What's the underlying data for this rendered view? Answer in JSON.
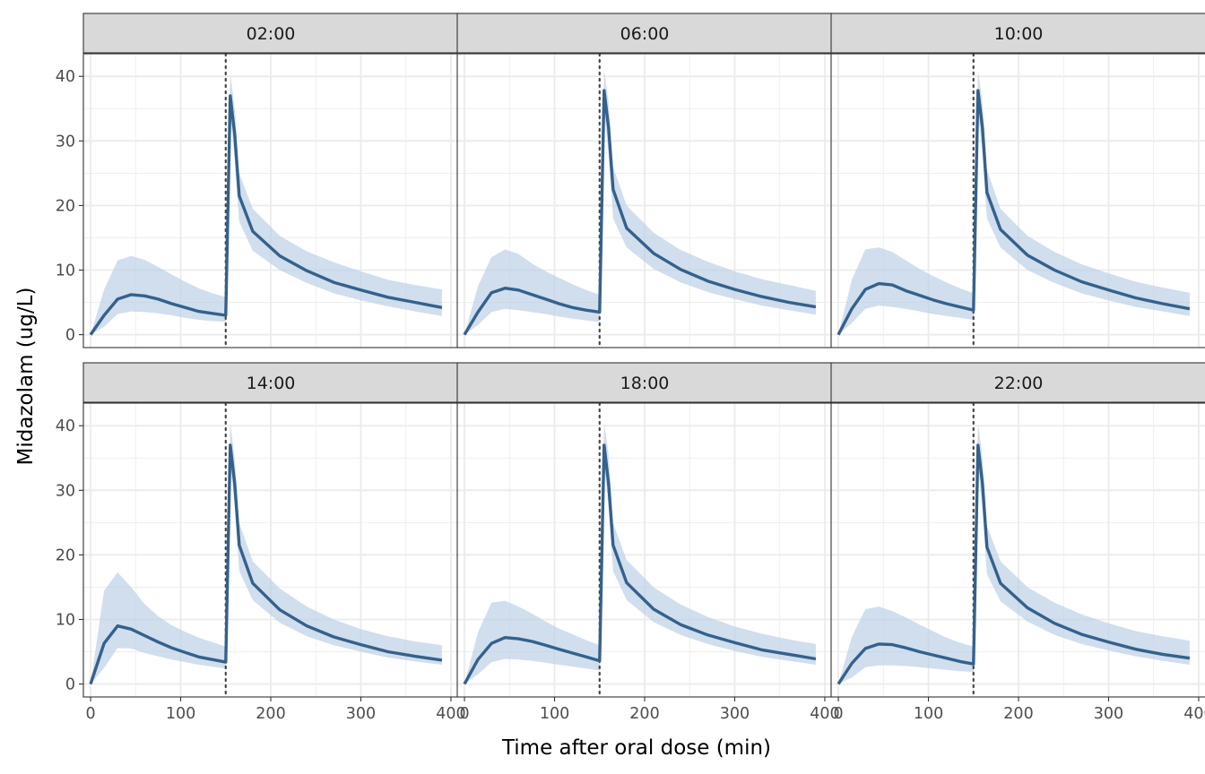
{
  "chart_data": {
    "type": "line",
    "xlabel": "Time after oral dose (min)",
    "ylabel": "Midazolam (ug/L)",
    "xlim": [
      -8,
      408
    ],
    "ylim": [
      -2,
      43.5
    ],
    "x_ticks": [
      0,
      100,
      200,
      300,
      400
    ],
    "y_ticks": [
      0,
      10,
      20,
      30,
      40
    ],
    "grid": true,
    "legend": "none",
    "reference_line": {
      "x": 150,
      "style": "dotted"
    },
    "colors": {
      "line": "#34618c",
      "band": "#b9cfe6",
      "strip_fill": "#d9d9d9",
      "grid": "#ebebeb",
      "panel_border": "#333333"
    },
    "x": [
      0,
      15,
      30,
      45,
      60,
      75,
      90,
      105,
      120,
      135,
      150,
      155,
      160,
      165,
      180,
      210,
      240,
      270,
      300,
      330,
      360,
      390
    ],
    "panels": [
      {
        "label": "02:00",
        "median": [
          0,
          3.0,
          5.5,
          6.2,
          6.0,
          5.5,
          4.8,
          4.2,
          3.6,
          3.3,
          3.0,
          37.0,
          31.0,
          21.5,
          16.0,
          12.2,
          9.9,
          8.1,
          6.9,
          5.8,
          5.0,
          4.2
        ],
        "lower": [
          0,
          1.2,
          3.2,
          3.6,
          3.5,
          3.3,
          3.0,
          2.6,
          2.3,
          2.1,
          2.0,
          34.0,
          27.0,
          17.5,
          13.0,
          10.0,
          8.0,
          6.4,
          5.3,
          4.4,
          3.6,
          2.9
        ],
        "upper": [
          0,
          7.0,
          11.5,
          12.2,
          11.6,
          10.5,
          9.3,
          8.2,
          7.2,
          6.4,
          5.8,
          40.5,
          35.0,
          25.0,
          19.5,
          15.3,
          12.9,
          11.2,
          9.8,
          8.5,
          7.7,
          7.0
        ]
      },
      {
        "label": "06:00",
        "median": [
          0,
          3.5,
          6.5,
          7.2,
          6.9,
          6.2,
          5.5,
          4.8,
          4.2,
          3.8,
          3.5,
          37.8,
          32.0,
          22.5,
          16.5,
          12.6,
          10.1,
          8.3,
          7.0,
          5.9,
          5.0,
          4.3
        ],
        "lower": [
          0,
          1.5,
          3.5,
          4.0,
          3.8,
          3.5,
          3.2,
          2.8,
          2.5,
          2.2,
          2.0,
          34.5,
          28.0,
          18.0,
          13.5,
          10.2,
          8.1,
          6.6,
          5.5,
          4.5,
          3.8,
          3.1
        ],
        "upper": [
          0,
          7.5,
          12.0,
          13.2,
          12.5,
          11.0,
          9.8,
          8.8,
          7.8,
          6.9,
          6.2,
          41.0,
          36.0,
          26.0,
          20.0,
          15.8,
          13.1,
          11.3,
          9.8,
          8.6,
          7.7,
          6.8
        ]
      },
      {
        "label": "10:00",
        "median": [
          0,
          4.0,
          7.0,
          7.9,
          7.7,
          6.8,
          6.1,
          5.4,
          4.8,
          4.3,
          3.8,
          37.8,
          32.0,
          22.0,
          16.3,
          12.3,
          10.0,
          8.2,
          6.9,
          5.7,
          4.8,
          4.0
        ],
        "lower": [
          0,
          1.8,
          4.0,
          4.5,
          4.3,
          4.0,
          3.6,
          3.2,
          2.9,
          2.6,
          2.3,
          34.5,
          28.0,
          18.0,
          13.5,
          10.0,
          8.0,
          6.4,
          5.3,
          4.3,
          3.6,
          2.9
        ],
        "upper": [
          0,
          8.5,
          13.2,
          13.5,
          12.8,
          11.5,
          10.2,
          9.1,
          8.1,
          7.2,
          6.4,
          41.0,
          36.0,
          25.5,
          19.5,
          15.3,
          12.8,
          10.9,
          9.5,
          8.2,
          7.3,
          6.5
        ]
      },
      {
        "label": "14:00",
        "median": [
          0,
          6.3,
          9.0,
          8.5,
          7.5,
          6.5,
          5.6,
          4.9,
          4.2,
          3.8,
          3.4,
          37.0,
          31.0,
          21.5,
          15.6,
          11.5,
          9.0,
          7.3,
          6.1,
          5.0,
          4.3,
          3.7
        ],
        "lower": [
          0,
          2.5,
          5.6,
          5.5,
          4.8,
          4.3,
          3.8,
          3.4,
          3.0,
          2.7,
          2.4,
          34.0,
          27.5,
          17.5,
          13.0,
          9.5,
          7.4,
          6.0,
          5.0,
          4.1,
          3.5,
          3.0
        ],
        "upper": [
          0,
          14.5,
          17.3,
          15.0,
          12.4,
          10.5,
          9.1,
          8.1,
          7.2,
          6.5,
          5.8,
          40.5,
          35.0,
          25.0,
          19.0,
          14.8,
          12.0,
          10.0,
          8.5,
          7.4,
          6.6,
          6.0
        ]
      },
      {
        "label": "18:00",
        "median": [
          0,
          3.8,
          6.3,
          7.2,
          7.0,
          6.6,
          6.0,
          5.4,
          4.8,
          4.2,
          3.6,
          37.0,
          31.0,
          21.5,
          15.7,
          11.6,
          9.2,
          7.6,
          6.4,
          5.3,
          4.6,
          3.9
        ],
        "lower": [
          0,
          1.5,
          3.4,
          3.9,
          3.8,
          3.6,
          3.3,
          3.0,
          2.7,
          2.4,
          2.1,
          34.0,
          27.5,
          17.5,
          13.0,
          9.6,
          7.6,
          6.2,
          5.1,
          4.2,
          3.6,
          3.0
        ],
        "upper": [
          0,
          8.0,
          12.6,
          12.9,
          12.0,
          10.9,
          9.7,
          8.6,
          7.7,
          6.8,
          6.0,
          40.5,
          35.5,
          25.0,
          19.2,
          15.0,
          12.3,
          10.4,
          8.9,
          7.8,
          6.9,
          6.2
        ]
      },
      {
        "label": "22:00",
        "median": [
          0,
          3.2,
          5.5,
          6.2,
          6.1,
          5.6,
          5.0,
          4.5,
          4.0,
          3.5,
          3.1,
          37.0,
          31.0,
          21.2,
          15.6,
          11.8,
          9.4,
          7.7,
          6.5,
          5.4,
          4.6,
          4.0
        ],
        "lower": [
          0,
          1.0,
          2.6,
          2.9,
          2.9,
          2.8,
          2.6,
          2.4,
          2.2,
          2.0,
          1.9,
          34.0,
          27.0,
          17.0,
          12.8,
          9.7,
          7.6,
          6.2,
          5.2,
          4.3,
          3.6,
          3.0
        ],
        "upper": [
          0,
          7.3,
          11.6,
          12.0,
          11.3,
          10.3,
          9.2,
          8.2,
          7.2,
          6.4,
          5.8,
          40.5,
          35.0,
          24.5,
          19.0,
          15.0,
          12.6,
          10.8,
          9.4,
          8.2,
          7.4,
          6.7
        ]
      }
    ]
  }
}
